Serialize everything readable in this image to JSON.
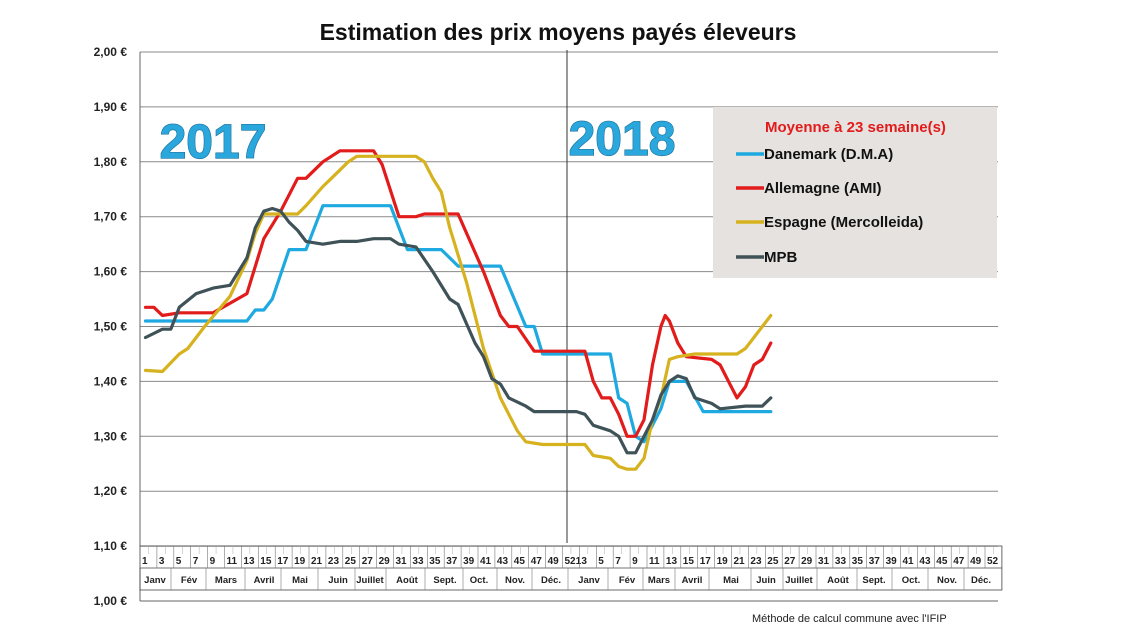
{
  "chart_data": {
    "type": "line",
    "title": "Estimation des prix moyens payés éleveurs",
    "year_labels": [
      "2017",
      "2018"
    ],
    "ylim": [
      1.0,
      2.0
    ],
    "y_ticks": [
      "1,00 €",
      "1,10 €",
      "1,20 €",
      "1,30 €",
      "1,40 €",
      "1,50 €",
      "1,60 €",
      "1,70 €",
      "1,80 €",
      "1,90 €",
      "2,00 €"
    ],
    "week_labels": [
      "1",
      "3",
      "5",
      "7",
      "9",
      "11",
      "13",
      "15",
      "17",
      "19",
      "21",
      "23",
      "25",
      "27",
      "29",
      "31",
      "33",
      "35",
      "37",
      "39",
      "41",
      "43",
      "45",
      "47",
      "49",
      "521",
      "3",
      "5",
      "7",
      "9",
      "11",
      "13",
      "15",
      "17",
      "19",
      "21",
      "23",
      "25",
      "27",
      "29",
      "31",
      "33",
      "35",
      "37",
      "39",
      "41",
      "43",
      "45",
      "47",
      "49",
      "52"
    ],
    "months_2017": [
      "Janv",
      "Fév",
      "Mars",
      "Avril",
      "Mai",
      "Juin",
      "Juillet",
      "Août",
      "Sept.",
      "Oct.",
      "Nov.",
      "Déc."
    ],
    "months_2018": [
      "Janv",
      "Fév",
      "Mars",
      "Avril",
      "Mai",
      "Juin",
      "Juillet",
      "Août",
      "Sept.",
      "Oct.",
      "Nov.",
      "Déc."
    ],
    "legend_title": "Moyenne à  23 semaine(s)",
    "footnote": "Méthode de calcul commune avec l'IFIP",
    "series": [
      {
        "name": "Danemark (D.M.A)",
        "color": "#1ea9e1",
        "points": [
          [
            1,
            1.51
          ],
          [
            5,
            1.51
          ],
          [
            13,
            1.51
          ],
          [
            14,
            1.53
          ],
          [
            15,
            1.53
          ],
          [
            16,
            1.55
          ],
          [
            18,
            1.64
          ],
          [
            20,
            1.64
          ],
          [
            22,
            1.72
          ],
          [
            30,
            1.72
          ],
          [
            32,
            1.64
          ],
          [
            36,
            1.64
          ],
          [
            38,
            1.61
          ],
          [
            43,
            1.61
          ],
          [
            46,
            1.5
          ],
          [
            47,
            1.5
          ],
          [
            48,
            1.45
          ],
          [
            56,
            1.45
          ],
          [
            57,
            1.37
          ],
          [
            58,
            1.36
          ],
          [
            59,
            1.3
          ],
          [
            60,
            1.29
          ],
          [
            62,
            1.35
          ],
          [
            63,
            1.4
          ],
          [
            65,
            1.4
          ],
          [
            67,
            1.345
          ],
          [
            71,
            1.345
          ],
          [
            75,
            1.345
          ]
        ]
      },
      {
        "name": "Allemagne (AMI)",
        "color": "#e21b1b",
        "points": [
          [
            1,
            1.535
          ],
          [
            2,
            1.535
          ],
          [
            3,
            1.52
          ],
          [
            5,
            1.525
          ],
          [
            9,
            1.525
          ],
          [
            13,
            1.56
          ],
          [
            15,
            1.66
          ],
          [
            17,
            1.71
          ],
          [
            19,
            1.77
          ],
          [
            20,
            1.77
          ],
          [
            22,
            1.8
          ],
          [
            24,
            1.82
          ],
          [
            28,
            1.82
          ],
          [
            29,
            1.795
          ],
          [
            31,
            1.7
          ],
          [
            33,
            1.7
          ],
          [
            34,
            1.705
          ],
          [
            38,
            1.705
          ],
          [
            41,
            1.6
          ],
          [
            43,
            1.52
          ],
          [
            44,
            1.5
          ],
          [
            45,
            1.5
          ],
          [
            47,
            1.455
          ],
          [
            50,
            1.455
          ],
          [
            53,
            1.455
          ],
          [
            54,
            1.4
          ],
          [
            55,
            1.37
          ],
          [
            56,
            1.37
          ],
          [
            57,
            1.34
          ],
          [
            58,
            1.3
          ],
          [
            59,
            1.3
          ],
          [
            60,
            1.33
          ],
          [
            61,
            1.43
          ],
          [
            62,
            1.5
          ],
          [
            62.5,
            1.52
          ],
          [
            63,
            1.51
          ],
          [
            64,
            1.47
          ],
          [
            65,
            1.445
          ],
          [
            68,
            1.44
          ],
          [
            69,
            1.43
          ],
          [
            70,
            1.4
          ],
          [
            71,
            1.37
          ],
          [
            72,
            1.39
          ],
          [
            73,
            1.43
          ],
          [
            74,
            1.44
          ],
          [
            75,
            1.47
          ]
        ]
      },
      {
        "name": "Espagne (Mercolleida)",
        "color": "#d6b21f",
        "points": [
          [
            1,
            1.42
          ],
          [
            3,
            1.418
          ],
          [
            5,
            1.45
          ],
          [
            6,
            1.46
          ],
          [
            8,
            1.5
          ],
          [
            11,
            1.555
          ],
          [
            13,
            1.62
          ],
          [
            14,
            1.67
          ],
          [
            15,
            1.705
          ],
          [
            16,
            1.705
          ],
          [
            19,
            1.705
          ],
          [
            20,
            1.72
          ],
          [
            22,
            1.755
          ],
          [
            23,
            1.77
          ],
          [
            25,
            1.8
          ],
          [
            26,
            1.81
          ],
          [
            31,
            1.81
          ],
          [
            33,
            1.81
          ],
          [
            34,
            1.8
          ],
          [
            35,
            1.77
          ],
          [
            36,
            1.745
          ],
          [
            37,
            1.68
          ],
          [
            39,
            1.58
          ],
          [
            41,
            1.46
          ],
          [
            43,
            1.37
          ],
          [
            45,
            1.31
          ],
          [
            46,
            1.29
          ],
          [
            48,
            1.285
          ],
          [
            53,
            1.285
          ],
          [
            54,
            1.265
          ],
          [
            56,
            1.26
          ],
          [
            57,
            1.245
          ],
          [
            58,
            1.24
          ],
          [
            59,
            1.24
          ],
          [
            60,
            1.26
          ],
          [
            61,
            1.33
          ],
          [
            62,
            1.37
          ],
          [
            63,
            1.44
          ],
          [
            64,
            1.445
          ],
          [
            66,
            1.45
          ],
          [
            70,
            1.45
          ],
          [
            71,
            1.45
          ],
          [
            72,
            1.46
          ],
          [
            73,
            1.48
          ],
          [
            75,
            1.52
          ]
        ]
      },
      {
        "name": "MPB",
        "color": "#3f5258",
        "points": [
          [
            1,
            1.48
          ],
          [
            3,
            1.495
          ],
          [
            4,
            1.495
          ],
          [
            5,
            1.535
          ],
          [
            7,
            1.56
          ],
          [
            9,
            1.57
          ],
          [
            11,
            1.575
          ],
          [
            13,
            1.625
          ],
          [
            14,
            1.68
          ],
          [
            15,
            1.71
          ],
          [
            16,
            1.715
          ],
          [
            17,
            1.71
          ],
          [
            18,
            1.69
          ],
          [
            19,
            1.675
          ],
          [
            20,
            1.655
          ],
          [
            22,
            1.65
          ],
          [
            24,
            1.655
          ],
          [
            26,
            1.655
          ],
          [
            28,
            1.66
          ],
          [
            30,
            1.66
          ],
          [
            31,
            1.65
          ],
          [
            33,
            1.645
          ],
          [
            35,
            1.6
          ],
          [
            37,
            1.55
          ],
          [
            38,
            1.54
          ],
          [
            40,
            1.47
          ],
          [
            41,
            1.445
          ],
          [
            42,
            1.405
          ],
          [
            43,
            1.395
          ],
          [
            44,
            1.37
          ],
          [
            46,
            1.355
          ],
          [
            47,
            1.345
          ],
          [
            50,
            1.345
          ],
          [
            52,
            1.345
          ],
          [
            53,
            1.34
          ],
          [
            54,
            1.32
          ],
          [
            56,
            1.31
          ],
          [
            57,
            1.3
          ],
          [
            58,
            1.27
          ],
          [
            59,
            1.27
          ],
          [
            60,
            1.3
          ],
          [
            61,
            1.33
          ],
          [
            62,
            1.375
          ],
          [
            63,
            1.4
          ],
          [
            64,
            1.41
          ],
          [
            65,
            1.405
          ],
          [
            66,
            1.37
          ],
          [
            68,
            1.36
          ],
          [
            69,
            1.35
          ],
          [
            72,
            1.355
          ],
          [
            74,
            1.355
          ],
          [
            75,
            1.37
          ]
        ]
      }
    ]
  }
}
